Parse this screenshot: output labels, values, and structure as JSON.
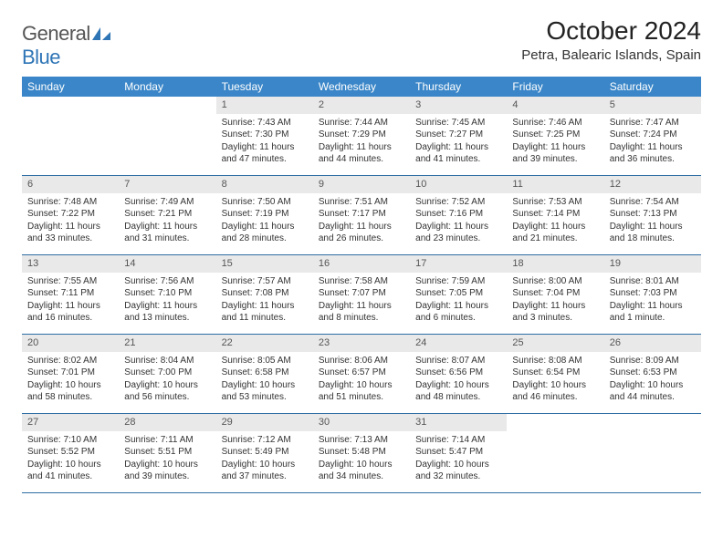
{
  "logo": {
    "text_general": "General",
    "text_blue": "Blue",
    "icon_color": "#2e75b6"
  },
  "header": {
    "title": "October 2024",
    "location": "Petra, Balearic Islands, Spain"
  },
  "colors": {
    "header_bar": "#3a86c8",
    "week_divider": "#2e6da4",
    "daynum_bg": "#e9e9e9",
    "text": "#333333",
    "bg": "#ffffff"
  },
  "weekdays": [
    "Sunday",
    "Monday",
    "Tuesday",
    "Wednesday",
    "Thursday",
    "Friday",
    "Saturday"
  ],
  "weeks": [
    [
      {
        "empty": true
      },
      {
        "empty": true
      },
      {
        "num": "1",
        "sunrise": "Sunrise: 7:43 AM",
        "sunset": "Sunset: 7:30 PM",
        "daylight1": "Daylight: 11 hours",
        "daylight2": "and 47 minutes."
      },
      {
        "num": "2",
        "sunrise": "Sunrise: 7:44 AM",
        "sunset": "Sunset: 7:29 PM",
        "daylight1": "Daylight: 11 hours",
        "daylight2": "and 44 minutes."
      },
      {
        "num": "3",
        "sunrise": "Sunrise: 7:45 AM",
        "sunset": "Sunset: 7:27 PM",
        "daylight1": "Daylight: 11 hours",
        "daylight2": "and 41 minutes."
      },
      {
        "num": "4",
        "sunrise": "Sunrise: 7:46 AM",
        "sunset": "Sunset: 7:25 PM",
        "daylight1": "Daylight: 11 hours",
        "daylight2": "and 39 minutes."
      },
      {
        "num": "5",
        "sunrise": "Sunrise: 7:47 AM",
        "sunset": "Sunset: 7:24 PM",
        "daylight1": "Daylight: 11 hours",
        "daylight2": "and 36 minutes."
      }
    ],
    [
      {
        "num": "6",
        "sunrise": "Sunrise: 7:48 AM",
        "sunset": "Sunset: 7:22 PM",
        "daylight1": "Daylight: 11 hours",
        "daylight2": "and 33 minutes."
      },
      {
        "num": "7",
        "sunrise": "Sunrise: 7:49 AM",
        "sunset": "Sunset: 7:21 PM",
        "daylight1": "Daylight: 11 hours",
        "daylight2": "and 31 minutes."
      },
      {
        "num": "8",
        "sunrise": "Sunrise: 7:50 AM",
        "sunset": "Sunset: 7:19 PM",
        "daylight1": "Daylight: 11 hours",
        "daylight2": "and 28 minutes."
      },
      {
        "num": "9",
        "sunrise": "Sunrise: 7:51 AM",
        "sunset": "Sunset: 7:17 PM",
        "daylight1": "Daylight: 11 hours",
        "daylight2": "and 26 minutes."
      },
      {
        "num": "10",
        "sunrise": "Sunrise: 7:52 AM",
        "sunset": "Sunset: 7:16 PM",
        "daylight1": "Daylight: 11 hours",
        "daylight2": "and 23 minutes."
      },
      {
        "num": "11",
        "sunrise": "Sunrise: 7:53 AM",
        "sunset": "Sunset: 7:14 PM",
        "daylight1": "Daylight: 11 hours",
        "daylight2": "and 21 minutes."
      },
      {
        "num": "12",
        "sunrise": "Sunrise: 7:54 AM",
        "sunset": "Sunset: 7:13 PM",
        "daylight1": "Daylight: 11 hours",
        "daylight2": "and 18 minutes."
      }
    ],
    [
      {
        "num": "13",
        "sunrise": "Sunrise: 7:55 AM",
        "sunset": "Sunset: 7:11 PM",
        "daylight1": "Daylight: 11 hours",
        "daylight2": "and 16 minutes."
      },
      {
        "num": "14",
        "sunrise": "Sunrise: 7:56 AM",
        "sunset": "Sunset: 7:10 PM",
        "daylight1": "Daylight: 11 hours",
        "daylight2": "and 13 minutes."
      },
      {
        "num": "15",
        "sunrise": "Sunrise: 7:57 AM",
        "sunset": "Sunset: 7:08 PM",
        "daylight1": "Daylight: 11 hours",
        "daylight2": "and 11 minutes."
      },
      {
        "num": "16",
        "sunrise": "Sunrise: 7:58 AM",
        "sunset": "Sunset: 7:07 PM",
        "daylight1": "Daylight: 11 hours",
        "daylight2": "and 8 minutes."
      },
      {
        "num": "17",
        "sunrise": "Sunrise: 7:59 AM",
        "sunset": "Sunset: 7:05 PM",
        "daylight1": "Daylight: 11 hours",
        "daylight2": "and 6 minutes."
      },
      {
        "num": "18",
        "sunrise": "Sunrise: 8:00 AM",
        "sunset": "Sunset: 7:04 PM",
        "daylight1": "Daylight: 11 hours",
        "daylight2": "and 3 minutes."
      },
      {
        "num": "19",
        "sunrise": "Sunrise: 8:01 AM",
        "sunset": "Sunset: 7:03 PM",
        "daylight1": "Daylight: 11 hours",
        "daylight2": "and 1 minute."
      }
    ],
    [
      {
        "num": "20",
        "sunrise": "Sunrise: 8:02 AM",
        "sunset": "Sunset: 7:01 PM",
        "daylight1": "Daylight: 10 hours",
        "daylight2": "and 58 minutes."
      },
      {
        "num": "21",
        "sunrise": "Sunrise: 8:04 AM",
        "sunset": "Sunset: 7:00 PM",
        "daylight1": "Daylight: 10 hours",
        "daylight2": "and 56 minutes."
      },
      {
        "num": "22",
        "sunrise": "Sunrise: 8:05 AM",
        "sunset": "Sunset: 6:58 PM",
        "daylight1": "Daylight: 10 hours",
        "daylight2": "and 53 minutes."
      },
      {
        "num": "23",
        "sunrise": "Sunrise: 8:06 AM",
        "sunset": "Sunset: 6:57 PM",
        "daylight1": "Daylight: 10 hours",
        "daylight2": "and 51 minutes."
      },
      {
        "num": "24",
        "sunrise": "Sunrise: 8:07 AM",
        "sunset": "Sunset: 6:56 PM",
        "daylight1": "Daylight: 10 hours",
        "daylight2": "and 48 minutes."
      },
      {
        "num": "25",
        "sunrise": "Sunrise: 8:08 AM",
        "sunset": "Sunset: 6:54 PM",
        "daylight1": "Daylight: 10 hours",
        "daylight2": "and 46 minutes."
      },
      {
        "num": "26",
        "sunrise": "Sunrise: 8:09 AM",
        "sunset": "Sunset: 6:53 PM",
        "daylight1": "Daylight: 10 hours",
        "daylight2": "and 44 minutes."
      }
    ],
    [
      {
        "num": "27",
        "sunrise": "Sunrise: 7:10 AM",
        "sunset": "Sunset: 5:52 PM",
        "daylight1": "Daylight: 10 hours",
        "daylight2": "and 41 minutes."
      },
      {
        "num": "28",
        "sunrise": "Sunrise: 7:11 AM",
        "sunset": "Sunset: 5:51 PM",
        "daylight1": "Daylight: 10 hours",
        "daylight2": "and 39 minutes."
      },
      {
        "num": "29",
        "sunrise": "Sunrise: 7:12 AM",
        "sunset": "Sunset: 5:49 PM",
        "daylight1": "Daylight: 10 hours",
        "daylight2": "and 37 minutes."
      },
      {
        "num": "30",
        "sunrise": "Sunrise: 7:13 AM",
        "sunset": "Sunset: 5:48 PM",
        "daylight1": "Daylight: 10 hours",
        "daylight2": "and 34 minutes."
      },
      {
        "num": "31",
        "sunrise": "Sunrise: 7:14 AM",
        "sunset": "Sunset: 5:47 PM",
        "daylight1": "Daylight: 10 hours",
        "daylight2": "and 32 minutes."
      },
      {
        "empty": true
      },
      {
        "empty": true
      }
    ]
  ]
}
